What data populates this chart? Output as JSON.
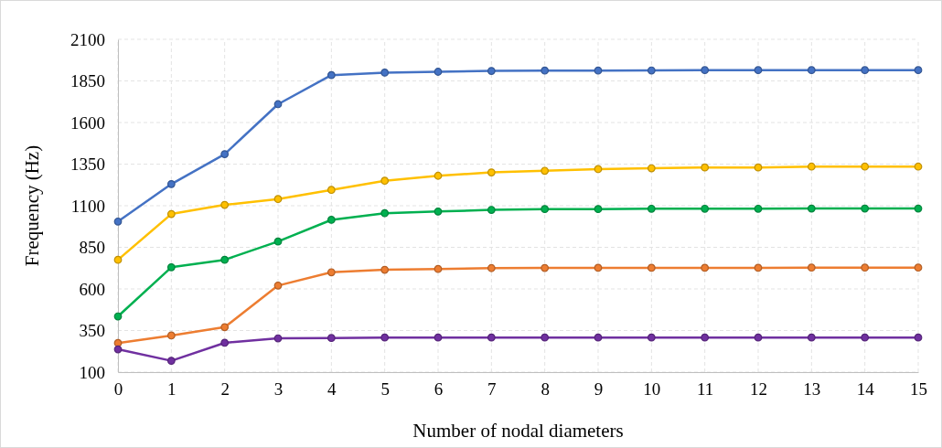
{
  "chart_data": {
    "type": "line",
    "xlabel": "Number of nodal diameters",
    "ylabel": "Frequency (Hz)",
    "x": [
      0,
      1,
      2,
      3,
      4,
      5,
      6,
      7,
      8,
      9,
      10,
      11,
      12,
      13,
      14,
      15
    ],
    "xlim": [
      0,
      15
    ],
    "xticks": [
      0,
      1,
      2,
      3,
      4,
      5,
      6,
      7,
      8,
      9,
      10,
      11,
      12,
      13,
      14,
      15
    ],
    "ylim": [
      100,
      2100
    ],
    "yticks": [
      100,
      350,
      600,
      850,
      1100,
      1350,
      1600,
      1850,
      2100
    ],
    "grid": true,
    "marker": "circle",
    "line_style": "solid",
    "series": [
      {
        "color": "#4472c4",
        "values": [
          1005,
          1230,
          1410,
          1710,
          1885,
          1900,
          1905,
          1910,
          1912,
          1912,
          1913,
          1915,
          1915,
          1915,
          1915,
          1915
        ]
      },
      {
        "color": "#ffc000",
        "values": [
          775,
          1050,
          1105,
          1140,
          1195,
          1250,
          1280,
          1300,
          1310,
          1320,
          1325,
          1330,
          1330,
          1335,
          1335,
          1335
        ]
      },
      {
        "color": "#00b050",
        "values": [
          435,
          730,
          775,
          885,
          1015,
          1055,
          1065,
          1075,
          1080,
          1080,
          1082,
          1082,
          1082,
          1083,
          1083,
          1083
        ]
      },
      {
        "color": "#ed7d31",
        "values": [
          275,
          320,
          370,
          620,
          700,
          715,
          720,
          725,
          726,
          727,
          727,
          727,
          727,
          728,
          728,
          728
        ]
      },
      {
        "color": "#7030a0",
        "values": [
          237,
          168,
          276,
          303,
          305,
          308,
          308,
          308,
          308,
          308,
          308,
          308,
          308,
          308,
          308,
          308
        ]
      }
    ]
  }
}
